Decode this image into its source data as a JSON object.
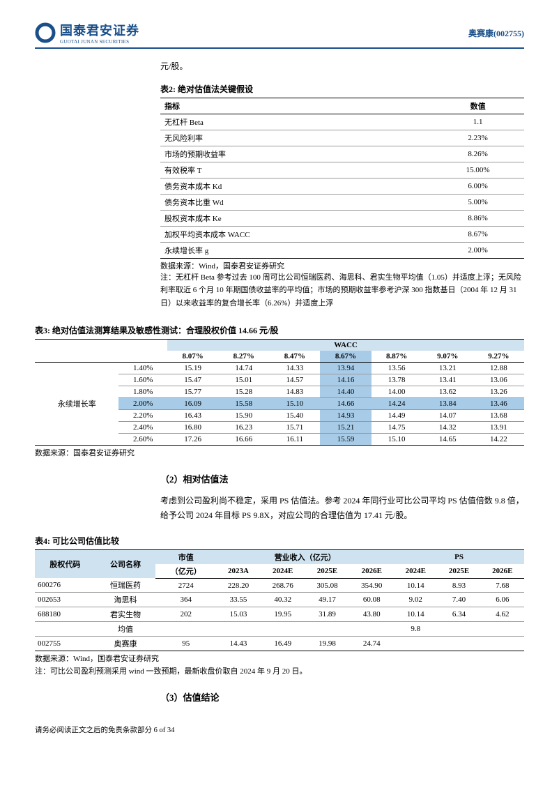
{
  "header": {
    "logo_cn": "国泰君安证券",
    "logo_en": "GUOTAI JUNAN SECURITIES",
    "stock_ref": "奥赛康(002755)"
  },
  "intro_tail": "元/股。",
  "table2": {
    "title": "表2:  绝对估值法关键假设",
    "col1": "指标",
    "col2": "数值",
    "rows": [
      {
        "k": "无杠杆 Beta",
        "v": "1.1"
      },
      {
        "k": "无风险利率",
        "v": "2.23%"
      },
      {
        "k": "市场的预期收益率",
        "v": "8.26%"
      },
      {
        "k": "有效税率 T",
        "v": "15.00%"
      },
      {
        "k": "债务资本成本 Kd",
        "v": "6.00%"
      },
      {
        "k": "债务资本比重 Wd",
        "v": "5.00%"
      },
      {
        "k": "股权资本成本 Ke",
        "v": "8.86%"
      },
      {
        "k": "加权平均资本成本 WACC",
        "v": "8.67%"
      },
      {
        "k": "永续增长率 g",
        "v": "2.00%"
      }
    ],
    "source": "数据来源：Wind，国泰君安证券研究",
    "note": "注：无杠杆 Beta 参考过去 100 周可比公司恒瑞医药、海思科、君实生物平均值（1.05）并适度上浮；无风险利率取近 6 个月 10 年期国债收益率的平均值；市场的预期收益率参考沪深 300 指数基日（2004 年 12 月 31 日）以来收益率的复合增长率（6.26%）并适度上浮"
  },
  "table3": {
    "title": "表3:  绝对估值法测算结果及敏感性测试：合理股权价值 14.66 元/股",
    "wacc_label": "WACC",
    "row_label": "永续增长率",
    "wacc_cols": [
      "8.07%",
      "8.27%",
      "8.47%",
      "8.67%",
      "8.87%",
      "9.07%",
      "9.27%"
    ],
    "rows": [
      {
        "g": "1.40%",
        "v": [
          "15.19",
          "14.74",
          "14.33",
          "13.94",
          "13.56",
          "13.21",
          "12.88"
        ]
      },
      {
        "g": "1.60%",
        "v": [
          "15.47",
          "15.01",
          "14.57",
          "14.16",
          "13.78",
          "13.41",
          "13.06"
        ]
      },
      {
        "g": "1.80%",
        "v": [
          "15.77",
          "15.28",
          "14.83",
          "14.40",
          "14.00",
          "13.62",
          "13.26"
        ]
      },
      {
        "g": "2.00%",
        "v": [
          "16.09",
          "15.58",
          "15.10",
          "14.66",
          "14.24",
          "13.84",
          "13.46"
        ]
      },
      {
        "g": "2.20%",
        "v": [
          "16.43",
          "15.90",
          "15.40",
          "14.93",
          "14.49",
          "14.07",
          "13.68"
        ]
      },
      {
        "g": "2.40%",
        "v": [
          "16.80",
          "16.23",
          "15.71",
          "15.21",
          "14.75",
          "14.32",
          "13.91"
        ]
      },
      {
        "g": "2.60%",
        "v": [
          "17.26",
          "16.66",
          "16.11",
          "15.59",
          "15.10",
          "14.65",
          "14.22"
        ]
      }
    ],
    "highlight_col_index": 3,
    "highlight_row_index": 3,
    "source": "数据来源：国泰君安证券研究"
  },
  "section2": {
    "heading": "（2）相对估值法",
    "body": "考虑到公司盈利尚不稳定，采用 PS 估值法。参考 2024 年同行业可比公司平均 PS 估值倍数 9.8 倍，给予公司 2024 年目标 PS 9.8X，对应公司的合理估值为 17.41 元/股。"
  },
  "table4": {
    "title": "表4:  可比公司估值比较",
    "headers": {
      "code": "股权代码",
      "name": "公司名称",
      "mcap": "市值",
      "mcap_unit": "（亿元）",
      "rev": "营业收入（亿元）",
      "ps": "PS",
      "y2023a": "2023A",
      "y2024e": "2024E",
      "y2025e": "2025E",
      "y2026e": "2026E",
      "ps2024e": "2024E",
      "ps2025e": "2025E",
      "ps2026e": "2026E"
    },
    "rows": [
      {
        "code": "600276",
        "name": "恒瑞医药",
        "mcap": "2724",
        "rev": [
          "228.20",
          "268.76",
          "305.08",
          "354.90"
        ],
        "ps": [
          "10.14",
          "8.93",
          "7.68"
        ]
      },
      {
        "code": "002653",
        "name": "海思科",
        "mcap": "364",
        "rev": [
          "33.55",
          "40.32",
          "49.17",
          "60.08"
        ],
        "ps": [
          "9.02",
          "7.40",
          "6.06"
        ]
      },
      {
        "code": "688180",
        "name": "君实生物",
        "mcap": "202",
        "rev": [
          "15.03",
          "19.95",
          "31.89",
          "43.80"
        ],
        "ps": [
          "10.14",
          "6.34",
          "4.62"
        ]
      }
    ],
    "avg_label": "均值",
    "avg_ps": "9.8",
    "target": {
      "code": "002755",
      "name": "奥赛康",
      "mcap": "95",
      "rev": [
        "14.43",
        "16.49",
        "19.98",
        "24.74"
      ]
    },
    "source": "数据来源：Wind，国泰君安证券研究",
    "note": "注：可比公司盈利预测采用 wind 一致预期，最新收盘价取自 2024 年 9 月 20 日。"
  },
  "section3": {
    "heading": "（3）估值结论"
  },
  "footer": "请务必阅读正文之后的免责条款部分 6 of 34"
}
